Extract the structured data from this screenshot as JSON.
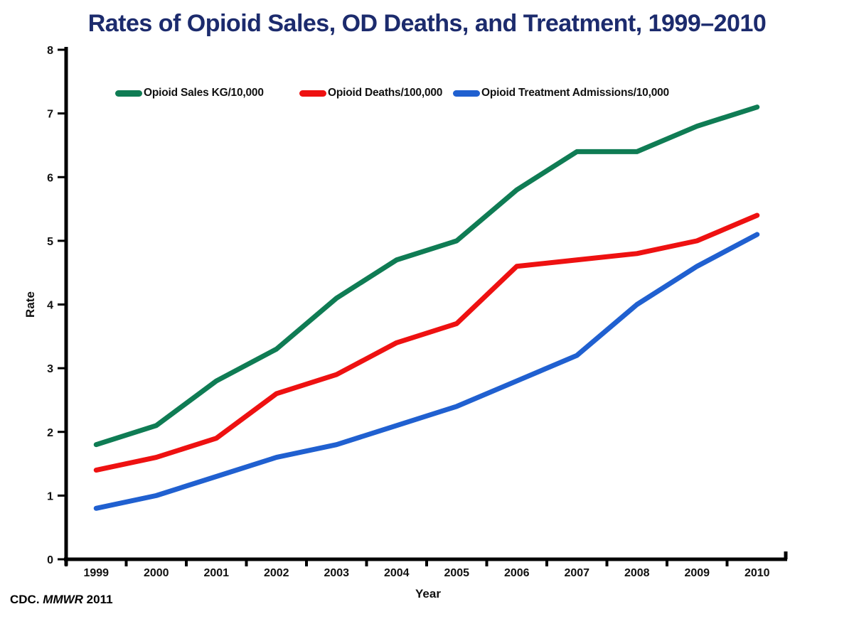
{
  "title": "Rates of Opioid Sales, OD Deaths, and Treatment, 1999–2010",
  "source": {
    "prefix": "CDC. ",
    "journal": "MMWR",
    "year": " 2011"
  },
  "colors": {
    "title": "#1C2B6D",
    "axis": "#000000",
    "text": "#111111",
    "sales": "#0F7C54",
    "deaths": "#EE1111",
    "treatment": "#2060D0"
  },
  "chart_data": {
    "type": "line",
    "title": "Rates of Opioid Sales, OD Deaths, and Treatment, 1999–2010",
    "categories": [
      "1999",
      "2000",
      "2001",
      "2002",
      "2003",
      "2004",
      "2005",
      "2006",
      "2007",
      "2008",
      "2009",
      "2010"
    ],
    "series": [
      {
        "name": "Opioid Sales KG/10,000",
        "color_key": "sales",
        "values": [
          1.8,
          2.1,
          2.8,
          3.3,
          4.1,
          4.7,
          5.0,
          5.8,
          6.4,
          6.4,
          6.8,
          7.1
        ]
      },
      {
        "name": "Opioid Deaths/100,000",
        "color_key": "deaths",
        "values": [
          1.4,
          1.6,
          1.9,
          2.6,
          2.9,
          3.4,
          3.7,
          4.6,
          4.7,
          4.8,
          5.0,
          5.4
        ]
      },
      {
        "name": "Opioid Treatment Admissions/10,000",
        "color_key": "treatment",
        "values": [
          0.8,
          1.0,
          1.3,
          1.6,
          1.8,
          2.1,
          2.4,
          2.8,
          3.2,
          4.0,
          4.6,
          5.1
        ]
      }
    ],
    "xlabel": "Year",
    "ylabel": "Rate",
    "ylim": [
      0,
      8
    ],
    "y_ticks": [
      0,
      1,
      2,
      3,
      4,
      5,
      6,
      7,
      8
    ],
    "grid": false,
    "legend_position": "top"
  }
}
